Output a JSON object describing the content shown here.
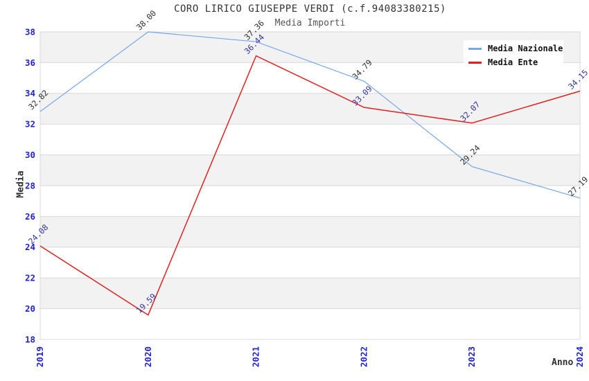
{
  "chart_data": {
    "type": "line",
    "title": "CORO LIRICO GIUSEPPE VERDI (c.f.94083380215)",
    "subtitle": "Media Importi",
    "xlabel": "Anno",
    "ylabel": "Media",
    "categories": [
      "2019",
      "2020",
      "2021",
      "2022",
      "2023",
      "2024"
    ],
    "series": [
      {
        "name": "Media Nazionale",
        "color": "#74a7e8",
        "label_color": "#303030",
        "values": [
          32.82,
          38.0,
          37.36,
          34.79,
          29.24,
          27.19
        ]
      },
      {
        "name": "Media Ente",
        "color": "#e02020",
        "label_color": "#333399",
        "values": [
          24.08,
          19.59,
          36.44,
          33.09,
          32.07,
          34.15
        ]
      }
    ],
    "ylim": [
      18,
      38
    ],
    "ytick_step": 2,
    "grid": "horizontal-bands",
    "legend_position": "top-right",
    "tick_color": "#2222cc",
    "band_color": "#f2f2f2",
    "grid_color": "#d8d8d8"
  }
}
